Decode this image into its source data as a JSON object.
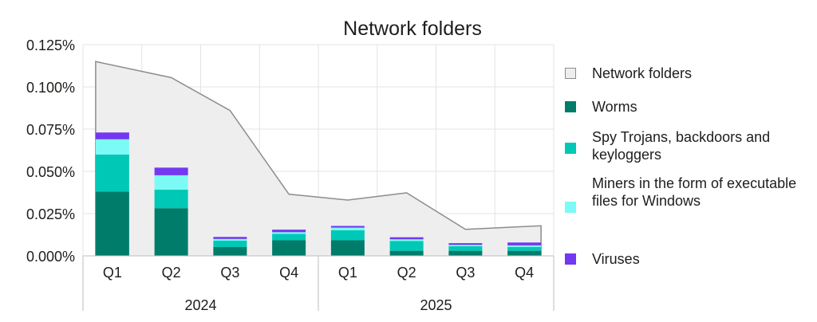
{
  "chart_data": {
    "type": "bar",
    "title": "Network folders",
    "categories": [
      "Q1",
      "Q2",
      "Q3",
      "Q4",
      "Q1",
      "Q2",
      "Q3",
      "Q4"
    ],
    "groups": [
      {
        "label": "2024",
        "from": 0,
        "to": 3
      },
      {
        "label": "2025",
        "from": 4,
        "to": 7
      }
    ],
    "ylim": [
      0,
      0.125
    ],
    "yticks": [
      {
        "value": 0,
        "label": "0.000%"
      },
      {
        "value": 0.025,
        "label": "0.025%"
      },
      {
        "value": 0.05,
        "label": "0.050%"
      },
      {
        "value": 0.075,
        "label": "0.075%"
      },
      {
        "value": 0.1,
        "label": "0.100%"
      },
      {
        "value": 0.125,
        "label": "0.125%"
      }
    ],
    "grid": true,
    "legend_position": "right",
    "area_series": {
      "name": "Network folders",
      "color": "#eeeeee",
      "stroke": "#8c8c8c",
      "values": [
        0.115,
        0.1055,
        0.086,
        0.0365,
        0.033,
        0.0373,
        0.0157,
        0.0178
      ]
    },
    "series": [
      {
        "name": "Worms",
        "color": "#007c6b",
        "values": [
          0.038,
          0.0282,
          0.0052,
          0.0092,
          0.0092,
          0.003,
          0.003,
          0.003
        ]
      },
      {
        "name": "Spy Trojans, backdoors and keyloggers",
        "color": "#00c8b6",
        "values": [
          0.022,
          0.011,
          0.0038,
          0.0038,
          0.006,
          0.0058,
          0.0027,
          0.0022
        ]
      },
      {
        "name": "Miners in the form of executable files for Windows",
        "color": "#7cfaf5",
        "values": [
          0.009,
          0.0085,
          0.001,
          0.001,
          0.0015,
          0.001,
          0.0008,
          0.001
        ]
      },
      {
        "name": "Viruses",
        "color": "#7238f2",
        "values": [
          0.004,
          0.0045,
          0.0012,
          0.0015,
          0.001,
          0.0012,
          0.001,
          0.0017
        ]
      }
    ]
  }
}
